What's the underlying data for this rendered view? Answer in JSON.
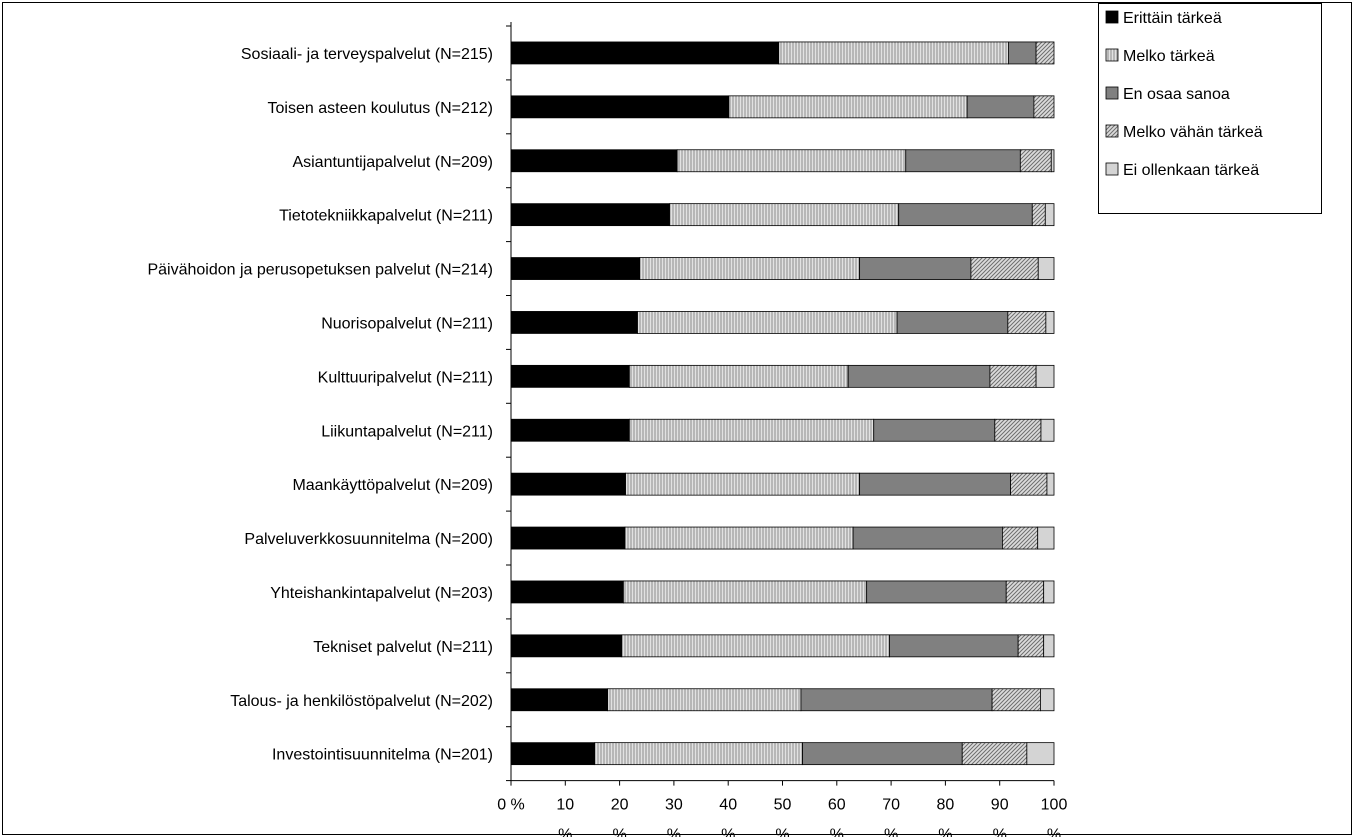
{
  "chart_data": {
    "type": "bar",
    "orientation": "horizontal",
    "stacked": true,
    "categories": [
      "Sosiaali- ja terveyspalvelut (N=215)",
      "Toisen asteen koulutus (N=212)",
      "Asiantuntijapalvelut (N=209)",
      "Tietotekniikkapalvelut (N=211)",
      "Päivähoidon ja perusopetuksen palvelut (N=214)",
      "Nuorisopalvelut (N=211)",
      "Kulttuuripalvelut (N=211)",
      "Liikuntapalvelut (N=211)",
      "Maankäyttöpalvelut (N=209)",
      "Palveluverkkosuunnitelma (N=200)",
      "Yhteishankintapalvelut (N=203)",
      "Tekniset palvelut (N=211)",
      "Talous- ja henkilöstöpalvelut (N=202)",
      "Investointisuunnitelma (N=201)"
    ],
    "series": [
      {
        "name": "Erittäin tärkeä",
        "color": "#000000",
        "pattern": "solid",
        "values": [
          49.3,
          40.1,
          30.6,
          29.2,
          23.7,
          23.3,
          21.8,
          21.8,
          21.1,
          21.0,
          20.7,
          20.4,
          17.8,
          15.4
        ]
      },
      {
        "name": "Melko tärkeä",
        "color": "#c8c8c8",
        "pattern": "vlines",
        "values": [
          42.3,
          43.9,
          42.1,
          42.2,
          40.5,
          47.8,
          40.3,
          45.0,
          43.1,
          42.0,
          44.8,
          49.3,
          35.6,
          38.3
        ]
      },
      {
        "name": "En osaa sanoa",
        "color": "#808080",
        "pattern": "solid",
        "values": [
          5.1,
          12.3,
          21.1,
          24.6,
          20.5,
          20.4,
          26.1,
          22.3,
          27.8,
          27.5,
          25.7,
          23.7,
          35.2,
          29.4
        ]
      },
      {
        "name": "Melko vähän tärkeä",
        "color": "#b4b4b4",
        "pattern": "diag",
        "values": [
          3.3,
          3.7,
          5.7,
          2.4,
          12.4,
          7.0,
          8.5,
          8.5,
          6.7,
          6.5,
          6.9,
          4.7,
          8.9,
          11.9
        ]
      },
      {
        "name": "Ei ollenkaan tärkeä",
        "color": "#d4d4d4",
        "pattern": "solid",
        "values": [
          0.0,
          0.0,
          0.5,
          1.6,
          2.9,
          1.5,
          3.3,
          2.4,
          1.3,
          3.0,
          1.9,
          1.9,
          2.5,
          5.0
        ]
      }
    ],
    "x_ticks": [
      {
        "num": "0 %",
        "unit": ""
      },
      {
        "num": "10",
        "unit": "%"
      },
      {
        "num": "20",
        "unit": "%"
      },
      {
        "num": "30",
        "unit": "%"
      },
      {
        "num": "40",
        "unit": "%"
      },
      {
        "num": "50",
        "unit": "%"
      },
      {
        "num": "60",
        "unit": "%"
      },
      {
        "num": "70",
        "unit": "%"
      },
      {
        "num": "80",
        "unit": "%"
      },
      {
        "num": "90",
        "unit": "%"
      },
      {
        "num": "100",
        "unit": "%"
      }
    ],
    "xlim": [
      0,
      100
    ],
    "grid": false,
    "legend_position": "top-right",
    "title": "",
    "xlabel": "",
    "ylabel": ""
  }
}
